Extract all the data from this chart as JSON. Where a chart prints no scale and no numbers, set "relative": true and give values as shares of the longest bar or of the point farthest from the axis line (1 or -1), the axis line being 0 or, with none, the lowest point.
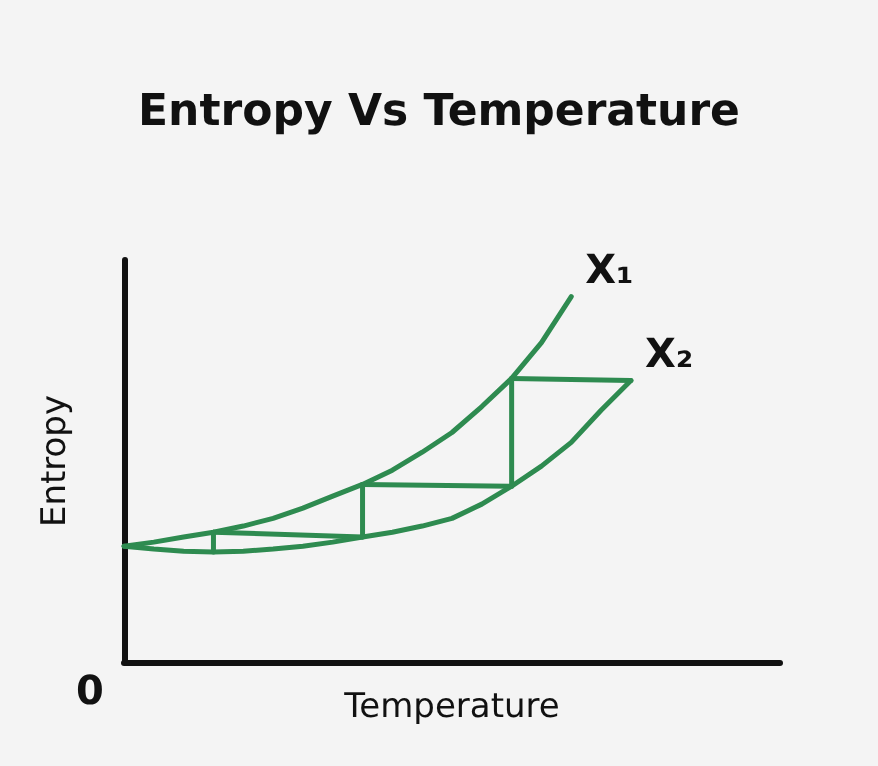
{
  "chart_data": {
    "type": "line",
    "title": "Entropy Vs Temperature",
    "xlabel": "Temperature",
    "ylabel": "Entropy",
    "relative": true,
    "categories": [
      null,
      null,
      null,
      null,
      null,
      null,
      null,
      null,
      null,
      null,
      null,
      null,
      null,
      null,
      null,
      null,
      null,
      null,
      null,
      null,
      null,
      null,
      null
    ],
    "series": [
      {
        "name": "X₁",
        "color": "#2e8b50",
        "values": [
          0.317,
          0.328,
          0.342,
          0.355,
          0.372,
          0.393,
          0.421,
          0.454,
          0.486,
          0.525,
          0.574,
          0.628,
          0.699,
          0.776,
          0.874,
          1.0,
          null,
          null,
          null,
          null,
          null,
          null,
          null
        ]
      },
      {
        "name": "X₂",
        "color": "#2e8b50",
        "values": [
          0.317,
          0.309,
          0.303,
          0.301,
          0.303,
          0.309,
          0.317,
          0.328,
          0.342,
          0.355,
          0.372,
          0.393,
          0.432,
          0.481,
          0.536,
          0.601,
          0.689,
          0.77,
          null,
          null,
          null,
          null,
          null
        ]
      },
      {
        "color": "#2e8b50",
        "values": [
          null,
          null,
          null,
          0.355,
          null,
          null,
          null,
          null,
          0.342,
          null,
          null,
          null,
          null,
          null,
          null,
          null,
          null,
          null,
          null,
          null,
          null,
          null,
          null
        ]
      },
      {
        "color": "#2e8b50",
        "values": [
          null,
          null,
          null,
          null,
          null,
          null,
          null,
          null,
          0.486,
          null,
          null,
          null,
          null,
          0.481,
          null,
          null,
          null,
          null,
          null,
          null,
          null,
          null,
          null
        ]
      },
      {
        "color": "#2e8b50",
        "values": [
          null,
          null,
          null,
          null,
          null,
          null,
          null,
          null,
          null,
          null,
          null,
          null,
          null,
          0.776,
          null,
          null,
          null,
          0.77,
          null,
          null,
          null,
          null,
          null
        ]
      }
    ],
    "annotations": [
      "0"
    ],
    "marker": "none",
    "line_style": "solid",
    "grid": false,
    "legend": false
  }
}
